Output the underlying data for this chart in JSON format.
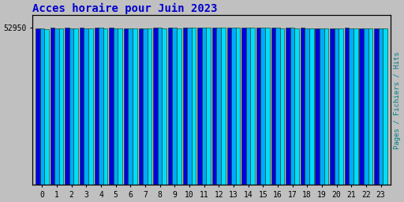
{
  "title": "Acces horaire pour Juin 2023",
  "title_color": "#0000cc",
  "background_color": "#c0c0c0",
  "plot_bg_color": "#c0c0c0",
  "ylabel_right": "Pages / Fichiers / Hits",
  "ylabel_right_color": "#008080",
  "hours": [
    0,
    1,
    2,
    3,
    4,
    5,
    6,
    7,
    8,
    9,
    10,
    11,
    12,
    13,
    14,
    15,
    16,
    17,
    18,
    19,
    20,
    21,
    22,
    23
  ],
  "ytick_label": "52950",
  "ytick_value": 52950,
  "ymin": 0,
  "ymax": 57000,
  "pages_values": [
    52620,
    52760,
    52790,
    52800,
    52820,
    52750,
    52700,
    52730,
    52860,
    52840,
    53010,
    52980,
    52960,
    52870,
    52870,
    52870,
    52840,
    52810,
    52780,
    52680,
    52630,
    52760,
    52720,
    52730
  ],
  "fichiers_values": [
    52550,
    52700,
    52720,
    52740,
    52760,
    52680,
    52640,
    52660,
    52800,
    52780,
    52950,
    52920,
    52900,
    52810,
    52810,
    52810,
    52780,
    52750,
    52720,
    52620,
    52570,
    52700,
    52660,
    52670
  ],
  "hits_values": [
    52480,
    52630,
    52660,
    52680,
    52700,
    52620,
    52580,
    52600,
    52730,
    52710,
    52890,
    52850,
    52840,
    52750,
    52750,
    52750,
    52720,
    52690,
    52650,
    52560,
    52510,
    52640,
    52600,
    52610
  ],
  "bar_width": 0.3,
  "color_pages": "#0000dd",
  "color_fichiers": "#00aaff",
  "color_hits": "#00ddff",
  "edgecolor": "#003300",
  "font_family": "monospace",
  "title_fontsize": 10,
  "tick_fontsize": 7
}
